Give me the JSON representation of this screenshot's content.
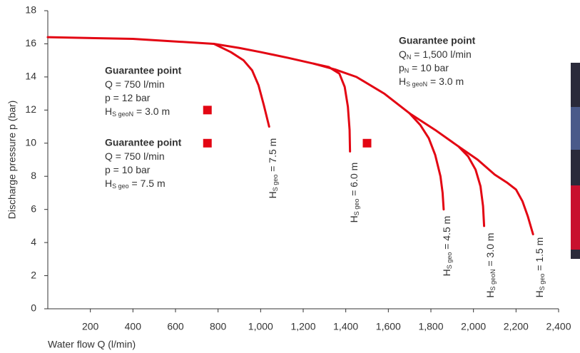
{
  "chart_data": {
    "type": "line",
    "xlabel": "Water flow Q (l/min)",
    "ylabel": "Discharge pressure p (bar)",
    "xlim": [
      0,
      2400
    ],
    "ylim": [
      0,
      18
    ],
    "xticks": [
      200,
      400,
      600,
      800,
      {
        "value": 1000,
        "label": "1,000"
      },
      {
        "value": 1200,
        "label": "1,200"
      },
      {
        "value": 1400,
        "label": "1,400"
      },
      {
        "value": 1600,
        "label": "1,600"
      },
      {
        "value": 1800,
        "label": "1,800"
      },
      {
        "value": 2000,
        "label": "2,000"
      },
      {
        "value": 2200,
        "label": "2,200"
      },
      {
        "value": 2400,
        "label": "2,400"
      }
    ],
    "yticks": [
      0,
      2,
      4,
      6,
      8,
      10,
      12,
      14,
      16,
      18
    ],
    "series": [
      {
        "color": "#e30613",
        "x": [
          0,
          400,
          780,
          900,
          1000,
          1130,
          1250,
          1350,
          1450,
          1580,
          1700,
          1820,
          1930,
          2020,
          2100,
          2160,
          2200,
          2230,
          2255,
          2280
        ],
        "values": [
          16.4,
          16.3,
          16.0,
          15.75,
          15.5,
          15.15,
          14.8,
          14.45,
          14.0,
          13.0,
          11.8,
          10.8,
          9.8,
          9.0,
          8.1,
          7.6,
          7.2,
          6.5,
          5.6,
          4.5
        ],
        "label": {
          "main": "H",
          "sub": "S geo",
          "after": " = 1.5 m"
        }
      },
      {
        "color": "#e30613",
        "x": [
          780,
          860,
          920,
          960,
          990,
          1015,
          1040
        ],
        "values": [
          16.0,
          15.5,
          15.0,
          14.4,
          13.5,
          12.3,
          11.0
        ],
        "label": {
          "main": "H",
          "sub": "S geo",
          "after": " = 7.5 m"
        }
      },
      {
        "color": "#e30613",
        "x": [
          1250,
          1320,
          1370,
          1395,
          1410,
          1418,
          1420
        ],
        "values": [
          14.8,
          14.6,
          14.2,
          13.4,
          12.2,
          10.8,
          9.5
        ],
        "label": {
          "main": "H",
          "sub": "S geo",
          "after": " = 6.0 m"
        }
      },
      {
        "color": "#e30613",
        "x": [
          1700,
          1750,
          1790,
          1820,
          1845,
          1855,
          1860
        ],
        "values": [
          11.8,
          11.1,
          10.3,
          9.3,
          8.0,
          7.0,
          6.0
        ],
        "label": {
          "main": "H",
          "sub": "S geo",
          "after": " = 4.5 m"
        }
      },
      {
        "color": "#e30613",
        "x": [
          1930,
          1975,
          2010,
          2033,
          2045,
          2050
        ],
        "values": [
          9.8,
          9.2,
          8.4,
          7.4,
          6.2,
          5.0
        ],
        "label": {
          "main": "H",
          "sub": "S geoN",
          "after": " = 3.0 m"
        }
      }
    ],
    "points": {
      "color": "#e30613",
      "x": [
        750,
        750,
        1500
      ],
      "values": [
        12,
        10,
        10
      ]
    },
    "annotations": [
      {
        "title": "Guarantee point",
        "lines": [
          {
            "main": "Q = 750 l/min"
          },
          {
            "main": "p = 12 bar"
          },
          {
            "main": "H",
            "sub": "S geoN",
            "after": " = 3.0 m"
          }
        ]
      },
      {
        "title": "Guarantee point",
        "lines": [
          {
            "main": "Q = 750 l/min"
          },
          {
            "main": "p = 10 bar"
          },
          {
            "main": "H",
            "sub": "S geo",
            "after": " = 7.5 m"
          }
        ]
      },
      {
        "title": "Guarantee point",
        "lines": [
          {
            "main": "Q",
            "sub": "N",
            "after": " = 1,500 l/min"
          },
          {
            "main": "p",
            "sub": "N",
            "after": " = 10 bar"
          },
          {
            "main": "H",
            "sub": "S geoN",
            "after": " = 3.0 m"
          }
        ]
      }
    ]
  }
}
